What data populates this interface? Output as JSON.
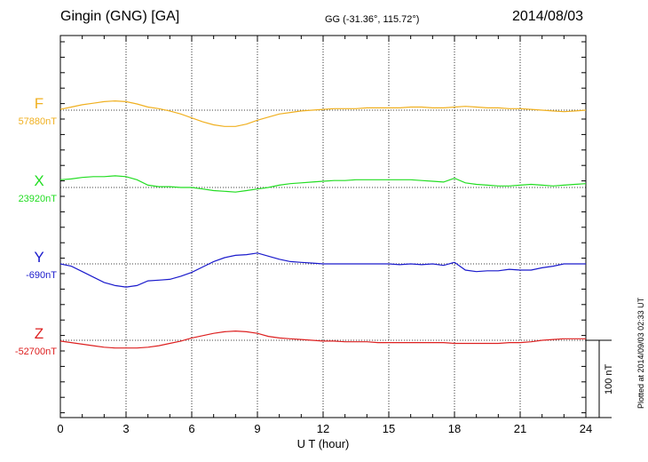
{
  "header": {
    "station": "Gingin (GNG)  [GA]",
    "coords": "GG (-31.36°, 115.72°)",
    "date": "2014/08/03"
  },
  "plot_note": "Plotted at 2014/09/03 02:33 UT",
  "scale_bar": {
    "label": "100 nT",
    "value_nT": 100
  },
  "chart_data": {
    "type": "line",
    "xlabel": "U T (hour)",
    "xlim": [
      0,
      24
    ],
    "xticks": [
      "0",
      "3",
      "6",
      "9",
      "12",
      "15",
      "18",
      "21",
      "24"
    ],
    "grid": "dotted vertical every 3 hours, dotted baseline per series",
    "units": "nT",
    "series": [
      {
        "name": "F",
        "baseline_label": "57880nT",
        "baseline": 57880,
        "color": "#f0b020",
        "x": [
          0,
          0.5,
          1,
          1.5,
          2,
          2.5,
          3,
          3.5,
          4,
          4.5,
          5,
          5.5,
          6,
          6.5,
          7,
          7.5,
          8,
          8.5,
          9,
          9.5,
          10,
          10.5,
          11,
          11.5,
          12,
          12.5,
          13,
          13.5,
          14,
          14.5,
          15,
          15.5,
          16,
          16.5,
          17,
          17.5,
          18,
          18.5,
          19,
          19.5,
          20,
          20.5,
          21,
          21.5,
          22,
          22.5,
          23,
          23.5,
          24
        ],
        "values": [
          1,
          4,
          7,
          9,
          11,
          12,
          11,
          8,
          4,
          2,
          -1,
          -5,
          -10,
          -15,
          -19,
          -21,
          -21,
          -18,
          -13,
          -9,
          -5,
          -3,
          -1,
          0,
          1,
          2,
          2,
          2,
          3,
          3,
          3,
          3,
          4,
          4,
          3,
          3,
          4,
          5,
          4,
          3,
          3,
          2,
          2,
          1,
          0,
          -1,
          -2,
          -1,
          0
        ]
      },
      {
        "name": "X",
        "baseline_label": "23920nT",
        "baseline": 23920,
        "color": "#22dd22",
        "x": [
          0,
          0.5,
          1,
          1.5,
          2,
          2.5,
          3,
          3.5,
          4,
          4.5,
          5,
          5.5,
          6,
          6.5,
          7,
          7.5,
          8,
          8.5,
          9,
          9.5,
          10,
          10.5,
          11,
          11.5,
          12,
          12.5,
          13,
          13.5,
          14,
          14.5,
          15,
          15.5,
          16,
          16.5,
          17,
          17.5,
          18,
          18.5,
          19,
          19.5,
          20,
          20.5,
          21,
          21.5,
          22,
          22.5,
          23,
          23.5,
          24
        ],
        "values": [
          10,
          11,
          13,
          14,
          14,
          15,
          14,
          10,
          3,
          1,
          1,
          0,
          0,
          -2,
          -4,
          -5,
          -6,
          -4,
          -2,
          0,
          3,
          5,
          6,
          7,
          8,
          9,
          9,
          10,
          10,
          10,
          10,
          10,
          10,
          9,
          8,
          7,
          12,
          6,
          4,
          3,
          2,
          2,
          3,
          4,
          3,
          2,
          3,
          4,
          5
        ]
      },
      {
        "name": "Y",
        "baseline_label": "-690nT",
        "baseline": -690,
        "color": "#1a1acc",
        "x": [
          0,
          0.5,
          1,
          1.5,
          2,
          2.5,
          3,
          3.5,
          4,
          4.5,
          5,
          5.5,
          6,
          6.5,
          7,
          7.5,
          8,
          8.5,
          9,
          9.5,
          10,
          10.5,
          11,
          11.5,
          12,
          12.5,
          13,
          13.5,
          14,
          14.5,
          15,
          15.5,
          16,
          16.5,
          17,
          17.5,
          18,
          18.5,
          19,
          19.5,
          20,
          20.5,
          21,
          21.5,
          22,
          22.5,
          23,
          23.5,
          24
        ],
        "values": [
          0,
          -3,
          -10,
          -17,
          -24,
          -28,
          -30,
          -28,
          -22,
          -21,
          -20,
          -16,
          -11,
          -4,
          3,
          8,
          11,
          12,
          14,
          10,
          6,
          3,
          2,
          1,
          0,
          0,
          0,
          0,
          0,
          0,
          0,
          -1,
          0,
          -1,
          0,
          -2,
          2,
          -8,
          -10,
          -9,
          -9,
          -7,
          -8,
          -8,
          -5,
          -3,
          0,
          0,
          0
        ]
      },
      {
        "name": "Z",
        "baseline_label": "-52700nT",
        "baseline": -52700,
        "color": "#dd2020",
        "x": [
          0,
          0.5,
          1,
          1.5,
          2,
          2.5,
          3,
          3.5,
          4,
          4.5,
          5,
          5.5,
          6,
          6.5,
          7,
          7.5,
          8,
          8.5,
          9,
          9.5,
          10,
          10.5,
          11,
          11.5,
          12,
          12.5,
          13,
          13.5,
          14,
          14.5,
          15,
          15.5,
          16,
          16.5,
          17,
          17.5,
          18,
          18.5,
          19,
          19.5,
          20,
          20.5,
          21,
          21.5,
          22,
          22.5,
          23,
          23.5,
          24
        ],
        "values": [
          -1,
          -3,
          -5,
          -7,
          -9,
          -10,
          -10,
          -10,
          -9,
          -7,
          -4,
          -1,
          3,
          6,
          9,
          11,
          12,
          11,
          9,
          5,
          3,
          2,
          1,
          0,
          -1,
          -1,
          -2,
          -2,
          -2,
          -3,
          -3,
          -3,
          -3,
          -3,
          -3,
          -3,
          -4,
          -4,
          -4,
          -4,
          -4,
          -3,
          -3,
          -2,
          0,
          1,
          2,
          2,
          2
        ]
      }
    ]
  }
}
